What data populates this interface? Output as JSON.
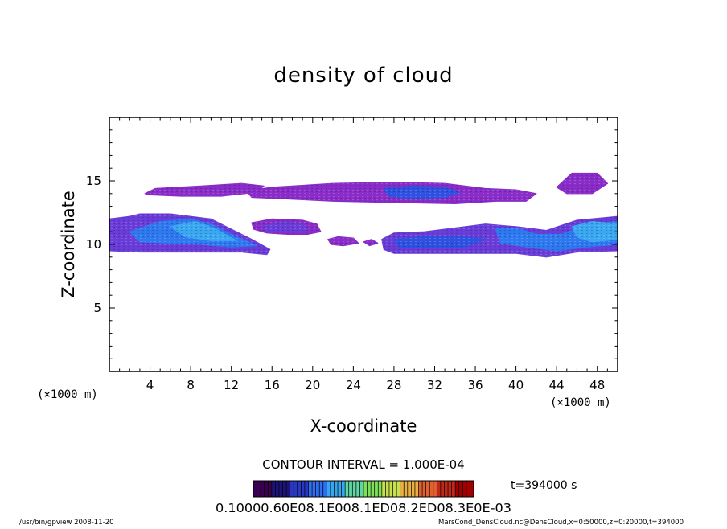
{
  "chart_data": {
    "type": "heatmap",
    "title": "density of cloud",
    "xlabel": "X-coordinate",
    "ylabel": "Z-coordinate",
    "x_unit": "(×1000 m)",
    "y_unit": "(×1000 m)",
    "xlim": [
      0,
      50
    ],
    "ylim": [
      0,
      20
    ],
    "x_ticks": [
      4,
      8,
      12,
      16,
      20,
      24,
      28,
      32,
      36,
      40,
      44,
      48
    ],
    "y_ticks": [
      5,
      10,
      15
    ],
    "grid": false,
    "contour_interval": "CONTOUR INTERVAL = 1.000E-04",
    "time_label": "t=394000 s",
    "colorbar_labels": "0.10000.60E08.1E008.1ED08.2ED08.3E0E-03",
    "colorbar_colors": [
      "#3a0050",
      "#1e1478",
      "#2838c0",
      "#2f6ef0",
      "#36a6ee",
      "#5fd6a4",
      "#7ee05a",
      "#c8e050",
      "#e8b040",
      "#e06030",
      "#c02818",
      "#a00000"
    ],
    "regions": [
      {
        "name": "upper-band-west",
        "density": 0.05,
        "points": [
          [
            3.5,
            14.0
          ],
          [
            4.5,
            14.4
          ],
          [
            9,
            14.6
          ],
          [
            13,
            14.8
          ],
          [
            15.2,
            14.6
          ],
          [
            14.5,
            14.1
          ],
          [
            11,
            13.8
          ],
          [
            7,
            13.8
          ],
          [
            4,
            13.9
          ]
        ]
      },
      {
        "name": "upper-band-central",
        "density": 0.08,
        "points": [
          [
            13.5,
            14.2
          ],
          [
            16,
            14.5
          ],
          [
            22,
            14.8
          ],
          [
            28,
            14.9
          ],
          [
            33,
            14.8
          ],
          [
            37,
            14.4
          ],
          [
            40,
            14.3
          ],
          [
            42,
            14.0
          ],
          [
            41,
            13.4
          ],
          [
            38,
            13.4
          ],
          [
            34,
            13.2
          ],
          [
            28,
            13.3
          ],
          [
            22,
            13.4
          ],
          [
            17,
            13.6
          ],
          [
            14,
            13.7
          ]
        ]
      },
      {
        "name": "upper-band-core",
        "density": 0.22,
        "points": [
          [
            27,
            14.4
          ],
          [
            30,
            14.6
          ],
          [
            33,
            14.5
          ],
          [
            34.5,
            14.1
          ],
          [
            33,
            13.7
          ],
          [
            30,
            13.6
          ],
          [
            27.5,
            13.8
          ]
        ]
      },
      {
        "name": "upper-band-east-blob",
        "density": 0.06,
        "points": [
          [
            44,
            14.5
          ],
          [
            45.5,
            15.6
          ],
          [
            48,
            15.6
          ],
          [
            49,
            14.8
          ],
          [
            47.5,
            14.0
          ],
          [
            45,
            14.0
          ]
        ]
      },
      {
        "name": "lower-west-base",
        "density": 0.12,
        "points": [
          [
            0,
            12.0
          ],
          [
            2,
            12.2
          ],
          [
            3,
            12.4
          ],
          [
            6,
            12.4
          ],
          [
            10,
            12.0
          ],
          [
            12,
            11.2
          ],
          [
            14,
            10.4
          ],
          [
            15.8,
            9.6
          ],
          [
            15.5,
            9.2
          ],
          [
            13,
            9.4
          ],
          [
            10,
            9.4
          ],
          [
            7,
            9.4
          ],
          [
            3,
            9.4
          ],
          [
            0,
            9.5
          ]
        ]
      },
      {
        "name": "lower-west-core",
        "density": 0.35,
        "points": [
          [
            2,
            11.0
          ],
          [
            5,
            11.8
          ],
          [
            8,
            12.0
          ],
          [
            10,
            11.6
          ],
          [
            12.5,
            10.6
          ],
          [
            14.5,
            9.9
          ],
          [
            12,
            9.8
          ],
          [
            9,
            10.0
          ],
          [
            6,
            10.1
          ],
          [
            3,
            10.2
          ]
        ]
      },
      {
        "name": "lower-west-hot",
        "density": 0.55,
        "points": [
          [
            6,
            11.4
          ],
          [
            8.5,
            11.8
          ],
          [
            10.5,
            11.2
          ],
          [
            12.5,
            10.3
          ],
          [
            10,
            10.3
          ],
          [
            7.5,
            10.6
          ]
        ]
      },
      {
        "name": "mid-patch",
        "density": 0.08,
        "points": [
          [
            14,
            11.7
          ],
          [
            16,
            12.0
          ],
          [
            19,
            11.9
          ],
          [
            20.4,
            11.6
          ],
          [
            20.8,
            11.0
          ],
          [
            19.5,
            10.8
          ],
          [
            17.5,
            10.8
          ],
          [
            15.5,
            10.9
          ],
          [
            14.2,
            11.2
          ]
        ]
      },
      {
        "name": "mid-patch-core",
        "density": 0.18,
        "points": [
          [
            15,
            11.4
          ],
          [
            17,
            11.8
          ],
          [
            19,
            11.6
          ],
          [
            19.6,
            11.1
          ],
          [
            17.5,
            11.0
          ],
          [
            15.5,
            11.0
          ]
        ]
      },
      {
        "name": "small-fragment-a",
        "density": 0.04,
        "points": [
          [
            21.5,
            10.4
          ],
          [
            22.5,
            10.6
          ],
          [
            24,
            10.5
          ],
          [
            24.5,
            10.1
          ],
          [
            23,
            9.9
          ],
          [
            21.8,
            10.0
          ]
        ]
      },
      {
        "name": "small-fragment-b",
        "density": 0.04,
        "points": [
          [
            25,
            10.2
          ],
          [
            25.8,
            10.4
          ],
          [
            26.4,
            10.1
          ],
          [
            25.6,
            9.9
          ]
        ]
      },
      {
        "name": "lower-east-base",
        "density": 0.12,
        "points": [
          [
            26.8,
            10.4
          ],
          [
            28,
            10.9
          ],
          [
            31,
            11.0
          ],
          [
            34,
            11.3
          ],
          [
            37,
            11.6
          ],
          [
            40,
            11.4
          ],
          [
            43,
            11.1
          ],
          [
            46,
            11.9
          ],
          [
            50,
            12.2
          ],
          [
            50,
            9.5
          ],
          [
            46,
            9.4
          ],
          [
            43,
            9.0
          ],
          [
            40,
            9.3
          ],
          [
            36,
            9.3
          ],
          [
            32,
            9.3
          ],
          [
            28,
            9.3
          ],
          [
            27,
            9.6
          ]
        ]
      },
      {
        "name": "lower-east-core",
        "density": 0.32,
        "points": [
          [
            38,
            11.2
          ],
          [
            40,
            11.3
          ],
          [
            42,
            10.8
          ],
          [
            44.5,
            10.8
          ],
          [
            47,
            11.6
          ],
          [
            50,
            11.8
          ],
          [
            50,
            10.0
          ],
          [
            47,
            9.8
          ],
          [
            44,
            9.5
          ],
          [
            41,
            9.8
          ],
          [
            38.5,
            10.1
          ]
        ]
      },
      {
        "name": "lower-east-hot",
        "density": 0.5,
        "points": [
          [
            45.5,
            11.4
          ],
          [
            47.5,
            11.8
          ],
          [
            50,
            11.6
          ],
          [
            50,
            10.4
          ],
          [
            47.5,
            10.2
          ],
          [
            46,
            10.6
          ]
        ]
      },
      {
        "name": "lower-east-band",
        "density": 0.2,
        "points": [
          [
            28,
            10.4
          ],
          [
            31,
            10.6
          ],
          [
            35,
            10.6
          ],
          [
            37,
            10.4
          ],
          [
            35,
            9.8
          ],
          [
            31,
            9.7
          ],
          [
            28.5,
            9.8
          ]
        ]
      }
    ]
  },
  "footer": {
    "left": "/usr/bin/gpview   2008-11-20",
    "right": "MarsCond_DensCloud.nc@DensCloud,x=0:50000,z=0:20000,t=394000"
  }
}
